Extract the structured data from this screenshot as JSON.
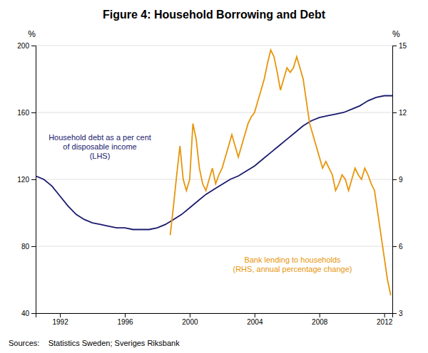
{
  "chart_data": {
    "type": "line",
    "title": "Figure 4: Household Borrowing and Debt",
    "source": "Sources:    Statistics Sweden; Sveriges Riksbank",
    "y_label": "%",
    "y2_label": "%",
    "annotations": [
      "Household debt as a per cent\nof disposable income\n(LHS)",
      "Bank lending to households\n(RHS, annual percentage change)"
    ],
    "xlim": [
      1990.5,
      2012.5
    ],
    "xticks": [
      1992,
      1996,
      2000,
      2004,
      2008,
      2012
    ],
    "ylim": [
      40,
      200
    ],
    "yticks": [
      40,
      80,
      120,
      160,
      200
    ],
    "y2lim": [
      3,
      15
    ],
    "y2ticks": [
      3,
      6,
      9,
      12,
      15
    ],
    "grid": true,
    "series": [
      {
        "color": "#1a1a6e",
        "x": [
          1990.5,
          1991.0,
          1991.5,
          1992.0,
          1992.5,
          1993.0,
          1993.5,
          1994.0,
          1994.5,
          1995.0,
          1995.5,
          1996.0,
          1996.5,
          1997.0,
          1997.5,
          1998.0,
          1998.5,
          1999.0,
          1999.5,
          2000.0,
          2000.5,
          2001.0,
          2001.5,
          2002.0,
          2002.5,
          2003.0,
          2003.5,
          2004.0,
          2004.5,
          2005.0,
          2005.5,
          2006.0,
          2006.5,
          2007.0,
          2007.5,
          2008.0,
          2008.5,
          2009.0,
          2009.5,
          2010.0,
          2010.5,
          2011.0,
          2011.5,
          2012.0,
          2012.5
        ],
        "values": [
          122,
          120,
          116,
          110,
          104,
          99,
          96,
          94,
          93,
          92,
          91,
          91,
          90,
          90,
          90,
          91,
          93,
          96,
          99,
          103,
          107,
          111,
          114,
          117,
          120,
          122,
          125,
          128,
          132,
          136,
          140,
          144,
          148,
          152,
          155,
          157,
          158,
          159,
          160,
          162,
          164,
          167,
          169,
          170,
          170
        ]
      },
      {
        "color": "#e8950a",
        "axis": "y2",
        "x": [
          1998.8,
          1999.0,
          1999.2,
          1999.4,
          1999.6,
          1999.8,
          2000.0,
          2000.2,
          2000.4,
          2000.6,
          2000.8,
          2001.0,
          2001.2,
          2001.4,
          2001.6,
          2001.8,
          2002.0,
          2002.2,
          2002.4,
          2002.6,
          2002.8,
          2003.0,
          2003.2,
          2003.4,
          2003.6,
          2003.8,
          2004.0,
          2004.2,
          2004.4,
          2004.6,
          2004.8,
          2005.0,
          2005.2,
          2005.4,
          2005.6,
          2005.8,
          2006.0,
          2006.2,
          2006.4,
          2006.6,
          2006.8,
          2007.0,
          2007.2,
          2007.4,
          2007.6,
          2007.8,
          2008.0,
          2008.2,
          2008.4,
          2008.6,
          2008.8,
          2009.0,
          2009.2,
          2009.4,
          2009.6,
          2009.8,
          2010.0,
          2010.2,
          2010.4,
          2010.6,
          2010.8,
          2011.0,
          2011.2,
          2011.4,
          2011.6,
          2011.8,
          2012.0,
          2012.2,
          2012.4
        ],
        "values": [
          6.5,
          7.8,
          9.2,
          10.5,
          9.0,
          8.5,
          9.0,
          11.5,
          10.8,
          9.5,
          8.8,
          8.5,
          9.0,
          9.5,
          8.8,
          9.2,
          9.5,
          10.0,
          10.5,
          11.0,
          10.5,
          10.0,
          10.5,
          11.0,
          11.5,
          11.8,
          12.0,
          12.5,
          13.0,
          13.5,
          14.2,
          14.8,
          14.5,
          13.8,
          13.0,
          13.5,
          14.0,
          13.8,
          14.0,
          14.5,
          14.0,
          13.5,
          12.5,
          11.5,
          11.0,
          10.5,
          10.0,
          9.5,
          9.8,
          9.5,
          9.2,
          8.5,
          8.8,
          9.2,
          9.0,
          8.5,
          9.0,
          9.5,
          9.2,
          9.0,
          9.5,
          9.2,
          8.8,
          8.5,
          7.5,
          6.5,
          5.5,
          4.5,
          3.8
        ]
      }
    ]
  }
}
